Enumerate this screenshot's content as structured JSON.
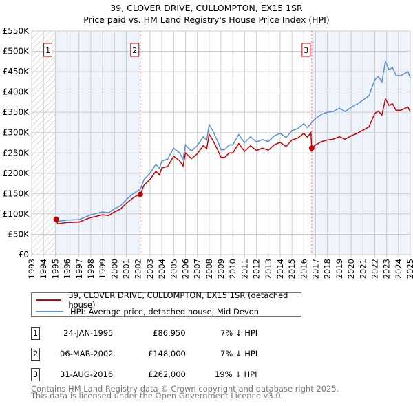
{
  "chart_data": {
    "type": "line",
    "title": "39, CLOVER DRIVE, CULLOMPTON, EX15 1SR",
    "subtitle": "Price paid vs. HM Land Registry's House Price Index (HPI)",
    "xlim": [
      1993,
      2025
    ],
    "ylim": [
      0,
      550000
    ],
    "y_ticks": [
      {
        "v": 0,
        "label": "£0"
      },
      {
        "v": 50000,
        "label": "£50K"
      },
      {
        "v": 100000,
        "label": "£100K"
      },
      {
        "v": 150000,
        "label": "£150K"
      },
      {
        "v": 200000,
        "label": "£200K"
      },
      {
        "v": 250000,
        "label": "£250K"
      },
      {
        "v": 300000,
        "label": "£300K"
      },
      {
        "v": 350000,
        "label": "£350K"
      },
      {
        "v": 400000,
        "label": "£400K"
      },
      {
        "v": 450000,
        "label": "£450K"
      },
      {
        "v": 500000,
        "label": "£500K"
      },
      {
        "v": 550000,
        "label": "£550K"
      }
    ],
    "x_ticks": [
      "1993",
      "1994",
      "1995",
      "1996",
      "1997",
      "1998",
      "1999",
      "2000",
      "2001",
      "2002",
      "2003",
      "2004",
      "2005",
      "2006",
      "2007",
      "2008",
      "2009",
      "2010",
      "2011",
      "2012",
      "2013",
      "2014",
      "2015",
      "2016",
      "2017",
      "2018",
      "2019",
      "2020",
      "2021",
      "2022",
      "2023",
      "2024",
      "2025"
    ],
    "grid": true,
    "series": [
      {
        "name": "39, CLOVER DRIVE, CULLOMPTON, EX15 1SR (detached house)",
        "color": "#cc0000",
        "x": [
          1995.07,
          1995.2,
          1996,
          1997,
          1997.5,
          1998,
          1999,
          1999.5,
          2000,
          2000.5,
          2001,
          2001.5,
          2002,
          2002.18,
          2002.5,
          2003,
          2003.5,
          2003.8,
          2004,
          2004.5,
          2005,
          2005.5,
          2005.8,
          2006,
          2006.5,
          2007,
          2007.5,
          2007.8,
          2008,
          2008.3,
          2008.7,
          2009,
          2009.3,
          2009.7,
          2010,
          2010.5,
          2011,
          2011.5,
          2012,
          2012.5,
          2013,
          2013.5,
          2014,
          2014.5,
          2015,
          2015.5,
          2016,
          2016.3,
          2016.6,
          2016.67,
          2017,
          2017.5,
          2018,
          2018.5,
          2019,
          2019.5,
          2020,
          2020.5,
          2021,
          2021.5,
          2022,
          2022.3,
          2022.6,
          2022.9,
          2023.2,
          2023.5,
          2023.8,
          2024.2,
          2024.5,
          2024.8,
          2025
        ],
        "y": [
          86950,
          76000,
          79000,
          80000,
          86000,
          91000,
          98000,
          96000,
          105000,
          112000,
          126000,
          138000,
          147000,
          148000,
          171000,
          185000,
          205000,
          196000,
          213000,
          217000,
          242000,
          231000,
          218000,
          250000,
          236000,
          248000,
          268000,
          261000,
          296000,
          282000,
          259000,
          239000,
          239000,
          250000,
          250000,
          273000,
          254000,
          268000,
          256000,
          262000,
          257000,
          270000,
          276000,
          266000,
          282000,
          287000,
          298000,
          289000,
          300000,
          262000,
          270000,
          278000,
          282000,
          284000,
          290000,
          284000,
          292000,
          298000,
          306000,
          314000,
          347000,
          353000,
          343000,
          383000,
          367000,
          371000,
          355000,
          355000,
          359000,
          363000,
          351000
        ]
      },
      {
        "name": "HPI: Average price, detached house, Mid Devon",
        "color": "#5b8fd4",
        "x": [
          1995.07,
          1995.2,
          1996,
          1997,
          1997.5,
          1998,
          1999,
          1999.5,
          2000,
          2000.5,
          2001,
          2001.5,
          2002,
          2002.18,
          2002.5,
          2003,
          2003.5,
          2003.8,
          2004,
          2004.5,
          2005,
          2005.5,
          2005.8,
          2006,
          2006.5,
          2007,
          2007.5,
          2007.8,
          2008,
          2008.3,
          2008.7,
          2009,
          2009.3,
          2009.7,
          2010,
          2010.5,
          2011,
          2011.5,
          2012,
          2012.5,
          2013,
          2013.5,
          2014,
          2014.5,
          2015,
          2015.5,
          2016,
          2016.3,
          2016.67,
          2017,
          2017.5,
          2018,
          2018.5,
          2019,
          2019.5,
          2020,
          2020.5,
          2021,
          2021.5,
          2022,
          2022.3,
          2022.6,
          2022.9,
          2023.2,
          2023.5,
          2023.8,
          2024.2,
          2024.5,
          2024.8,
          2025
        ],
        "y": [
          90000,
          82000,
          85000,
          86000,
          92000,
          98000,
          105000,
          103000,
          113000,
          120000,
          135000,
          148000,
          158000,
          160000,
          185000,
          200000,
          222000,
          212000,
          230000,
          235000,
          262000,
          250000,
          235000,
          270000,
          255000,
          268000,
          290000,
          282000,
          320000,
          305000,
          280000,
          258000,
          258000,
          270000,
          270000,
          295000,
          275000,
          290000,
          277000,
          283000,
          278000,
          292000,
          298000,
          288000,
          305000,
          310000,
          322000,
          312000,
          325000,
          335000,
          345000,
          350000,
          352000,
          360000,
          352000,
          362000,
          370000,
          380000,
          390000,
          430000,
          438000,
          425000,
          475000,
          455000,
          460000,
          440000,
          440000,
          445000,
          450000,
          435000
        ]
      }
    ],
    "sales": [
      {
        "label": "1",
        "x": 1995.07,
        "y": 86950
      },
      {
        "label": "2",
        "x": 2002.18,
        "y": 148000
      },
      {
        "label": "3",
        "x": 2016.67,
        "y": 262000
      }
    ]
  },
  "legend": {
    "items": [
      "39, CLOVER DRIVE, CULLOMPTON, EX15 1SR (detached house)",
      "HPI: Average price, detached house, Mid Devon"
    ]
  },
  "table": [
    {
      "num": "1",
      "date": "24-JAN-1995",
      "price": "£86,950",
      "hpi": "7% ↓ HPI"
    },
    {
      "num": "2",
      "date": "06-MAR-2002",
      "price": "£148,000",
      "hpi": "7% ↓ HPI"
    },
    {
      "num": "3",
      "date": "31-AUG-2016",
      "price": "£262,000",
      "hpi": "19% ↓ HPI"
    }
  ],
  "footer": {
    "line1": "Contains HM Land Registry data © Crown copyright and database right 2025.",
    "line2": "This data is licensed under the Open Government Licence v3.0."
  }
}
